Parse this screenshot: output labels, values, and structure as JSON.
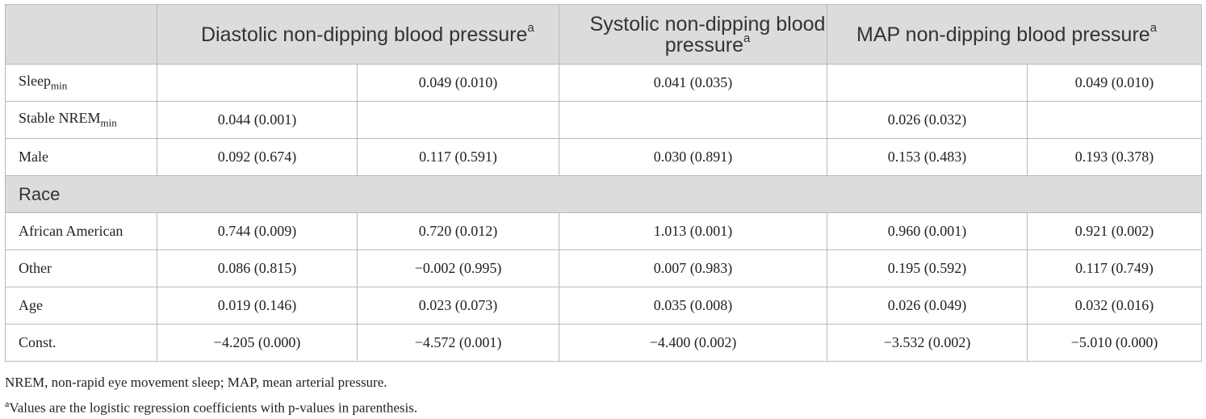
{
  "table": {
    "headers": {
      "blank": "",
      "diastolic": "Diastolic non-dipping blood pressure",
      "diastolic_sup": "a",
      "systolic": "Systolic non-dipping blood pressure",
      "systolic_sup": "a",
      "map": "MAP non-dipping blood pressure",
      "map_sup": "a"
    },
    "rows": [
      {
        "label": "Sleep",
        "label_sub": "min",
        "cells": [
          "",
          "0.049 (0.010)",
          "0.041 (0.035)",
          "",
          "0.049 (0.010)"
        ]
      },
      {
        "label": "Stable NREM",
        "label_sub": "min",
        "cells": [
          "0.044 (0.001)",
          "",
          "",
          "0.026 (0.032)",
          ""
        ]
      },
      {
        "label": "Male",
        "cells": [
          "0.092 (0.674)",
          "0.117 (0.591)",
          "0.030 (0.891)",
          "0.153 (0.483)",
          "0.193 (0.378)"
        ]
      },
      {
        "section": "Race"
      },
      {
        "label": "African American",
        "cells": [
          "0.744 (0.009)",
          "0.720 (0.012)",
          "1.013 (0.001)",
          "0.960 (0.001)",
          "0.921 (0.002)"
        ]
      },
      {
        "label": "Other",
        "cells": [
          "0.086 (0.815)",
          "−0.002 (0.995)",
          "0.007 (0.983)",
          "0.195 (0.592)",
          "0.117 (0.749)"
        ]
      },
      {
        "label": "Age",
        "cells": [
          "0.019 (0.146)",
          "0.023 (0.073)",
          "0.035 (0.008)",
          "0.026 (0.049)",
          "0.032 (0.016)"
        ]
      },
      {
        "label": "Const.",
        "cells": [
          "−4.205 (0.000)",
          "−4.572 (0.001)",
          "−4.400 (0.002)",
          "−3.532 (0.002)",
          "−5.010 (0.000)"
        ]
      }
    ]
  },
  "footnotes": {
    "abbreviations": "NREM, non-rapid eye movement sleep; MAP, mean arterial pressure.",
    "note_a_marker": "a",
    "note_a": "Values are the logistic regression coefficients with p-values in parenthesis."
  }
}
